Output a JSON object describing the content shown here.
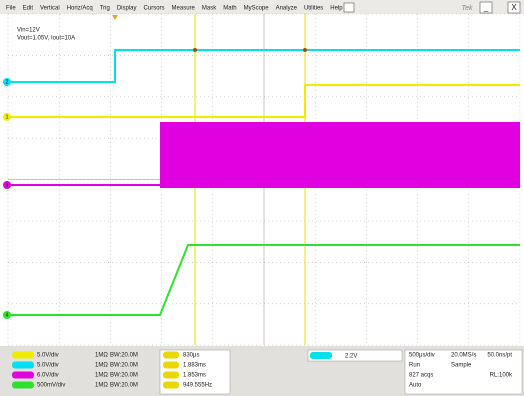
{
  "menu": [
    "File",
    "Edit",
    "Vertical",
    "Horiz/Acq",
    "Trig",
    "Display",
    "Cursors",
    "Measure",
    "Mask",
    "Math",
    "MyScope",
    "Analyze",
    "Utilities",
    "Help"
  ],
  "brand": "Tek",
  "annotation": [
    "Vin=12V",
    "Vout=1.05V, Iout=10A"
  ],
  "channels": [
    {
      "marker": "1",
      "scale": "5.0V/div",
      "impedance": "1MΩ",
      "bandwidth": "BW:20.0M"
    },
    {
      "marker": "2",
      "scale": "5.0V/div",
      "impedance": "1MΩ",
      "bandwidth": "BW:20.0M"
    },
    {
      "marker": "3",
      "scale": "6.0V/div",
      "impedance": "1MΩ",
      "bandwidth": "BW:20.0M"
    },
    {
      "marker": "4",
      "scale": "500mV/div",
      "impedance": "1MΩ",
      "bandwidth": "BW:20.0M"
    }
  ],
  "measurements": [
    "830μs",
    "1.883ms",
    "1.853ms",
    "949.555Hz"
  ],
  "trigger": "2.2V",
  "horizontal": [
    [
      "500μs/div",
      "20.0MS/s",
      "50.0ns/pt"
    ],
    [
      "Run",
      "Sample",
      ""
    ],
    [
      "827 acqs",
      "",
      "RL:100k"
    ],
    [
      "Auto",
      "",
      ""
    ]
  ]
}
